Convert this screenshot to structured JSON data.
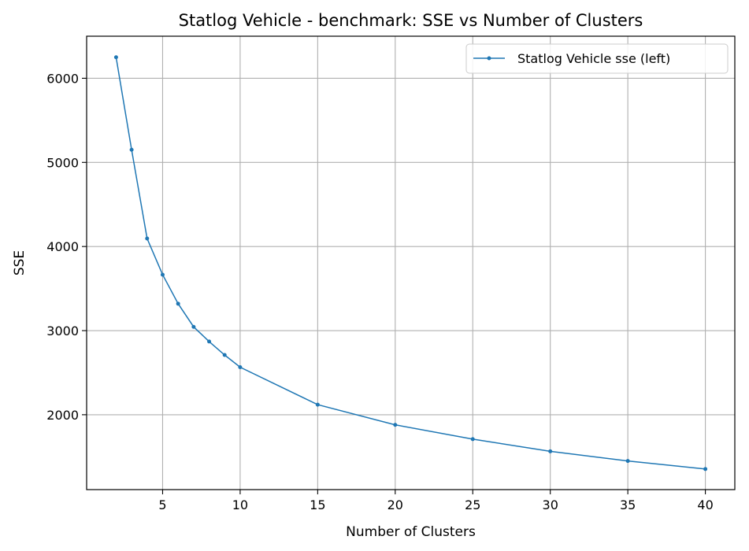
{
  "chart_data": {
    "type": "line",
    "title": "Statlog Vehicle - benchmark: SSE vs Number of Clusters",
    "xlabel": "Number of Clusters",
    "ylabel": "SSE",
    "xlim": [
      0.1,
      41.9
    ],
    "ylim": [
      1110,
      6500
    ],
    "xticks": [
      5,
      10,
      15,
      20,
      25,
      30,
      35,
      40
    ],
    "yticks": [
      2000,
      3000,
      4000,
      5000,
      6000
    ],
    "grid": true,
    "legend_position": "top-right",
    "series": [
      {
        "name": "Statlog Vehicle sse (left)",
        "color": "#1f77b4",
        "x": [
          2,
          3,
          4,
          5,
          6,
          7,
          8,
          9,
          10,
          15,
          20,
          25,
          30,
          35,
          40
        ],
        "y": [
          6250,
          5150,
          4095,
          3665,
          3320,
          3045,
          2870,
          2710,
          2565,
          2120,
          1880,
          1710,
          1565,
          1450,
          1355
        ]
      }
    ]
  }
}
